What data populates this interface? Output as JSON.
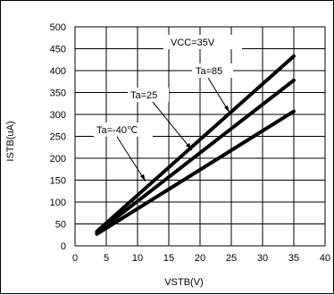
{
  "chart_data": {
    "type": "line",
    "title": "",
    "xlabel": "VSTB(V)",
    "ylabel": "ISTB(uA)",
    "xlim": [
      0,
      40
    ],
    "ylim": [
      0,
      500
    ],
    "xticks": [
      "0",
      "5",
      "10",
      "15",
      "20",
      "25",
      "30",
      "35",
      "40"
    ],
    "yticks": [
      "0",
      "50",
      "100",
      "150",
      "200",
      "250",
      "300",
      "350",
      "400",
      "450",
      "500"
    ],
    "grid": true,
    "legend": "none",
    "colors": {
      "series": "#000000",
      "grid": "#000000",
      "background": "#ffffff"
    },
    "series": [
      {
        "name": "Ta=-40°C",
        "x": [
          3.5,
          35
        ],
        "y": [
          27,
          307
        ]
      },
      {
        "name": "Ta=25",
        "x": [
          3.5,
          35
        ],
        "y": [
          30,
          378
        ]
      },
      {
        "name": "Ta=85",
        "x": [
          3.5,
          35
        ],
        "y": [
          33,
          433
        ]
      }
    ],
    "annotations": [
      "VCC=35V",
      "Ta=85",
      "Ta=25",
      "Ta=-40℃"
    ]
  }
}
